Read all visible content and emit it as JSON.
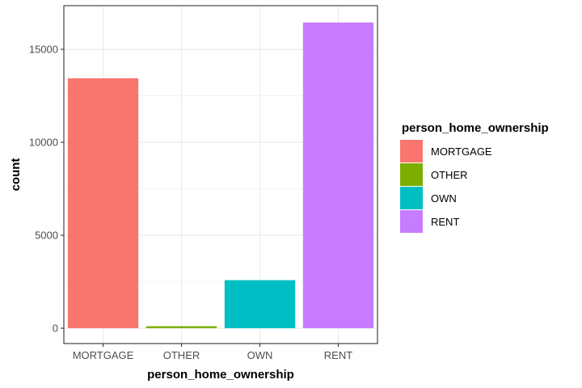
{
  "chart_data": {
    "type": "bar",
    "title": "",
    "xlabel": "person_home_ownership",
    "ylabel": "count",
    "categories": [
      "MORTGAGE",
      "OTHER",
      "OWN",
      "RENT"
    ],
    "values": [
      13444,
      107,
      2584,
      16446
    ],
    "colors": [
      "#F8766D",
      "#7CAE00",
      "#00BFC4",
      "#C77CFF"
    ],
    "ylim": [
      -825,
      17350
    ],
    "yticks": [
      0,
      5000,
      10000,
      15000
    ],
    "ytick_labels": [
      "0",
      "5000",
      "10000",
      "15000"
    ],
    "grid": true,
    "legend": {
      "title": "person_home_ownership",
      "placement": "right",
      "entries": [
        "MORTGAGE",
        "OTHER",
        "OWN",
        "RENT"
      ]
    }
  }
}
